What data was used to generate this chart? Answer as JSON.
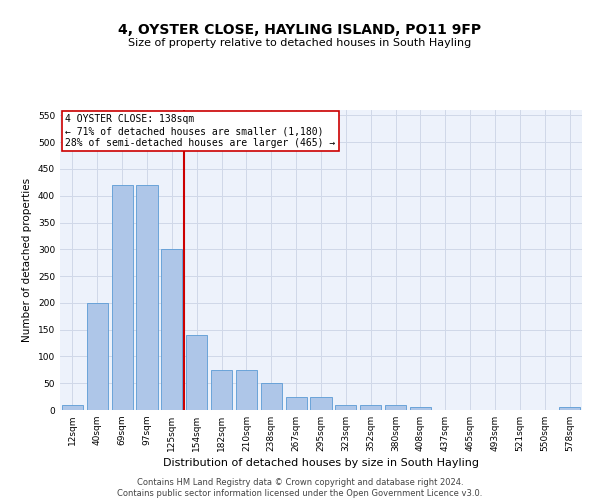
{
  "title": "4, OYSTER CLOSE, HAYLING ISLAND, PO11 9FP",
  "subtitle": "Size of property relative to detached houses in South Hayling",
  "xlabel": "Distribution of detached houses by size in South Hayling",
  "ylabel": "Number of detached properties",
  "bar_labels": [
    "12sqm",
    "40sqm",
    "69sqm",
    "97sqm",
    "125sqm",
    "154sqm",
    "182sqm",
    "210sqm",
    "238sqm",
    "267sqm",
    "295sqm",
    "323sqm",
    "352sqm",
    "380sqm",
    "408sqm",
    "437sqm",
    "465sqm",
    "493sqm",
    "521sqm",
    "550sqm",
    "578sqm"
  ],
  "bar_values": [
    10,
    200,
    420,
    420,
    300,
    140,
    75,
    75,
    50,
    25,
    25,
    10,
    10,
    10,
    5,
    0,
    0,
    0,
    0,
    0,
    5
  ],
  "bar_color": "#aec6e8",
  "bar_edge_color": "#5b9bd5",
  "grid_color": "#d0d8e8",
  "bg_color": "#edf2fb",
  "vline_color": "#cc0000",
  "annotation_text": "4 OYSTER CLOSE: 138sqm\n← 71% of detached houses are smaller (1,180)\n28% of semi-detached houses are larger (465) →",
  "annotation_box_color": "#ffffff",
  "annotation_box_edge": "#cc0000",
  "footer_text": "Contains HM Land Registry data © Crown copyright and database right 2024.\nContains public sector information licensed under the Open Government Licence v3.0.",
  "ylim": [
    0,
    560
  ],
  "yticks": [
    0,
    50,
    100,
    150,
    200,
    250,
    300,
    350,
    400,
    450,
    500,
    550
  ],
  "title_fontsize": 10,
  "subtitle_fontsize": 8,
  "xlabel_fontsize": 8,
  "ylabel_fontsize": 7.5,
  "tick_fontsize": 6.5,
  "footer_fontsize": 6,
  "annot_fontsize": 7
}
